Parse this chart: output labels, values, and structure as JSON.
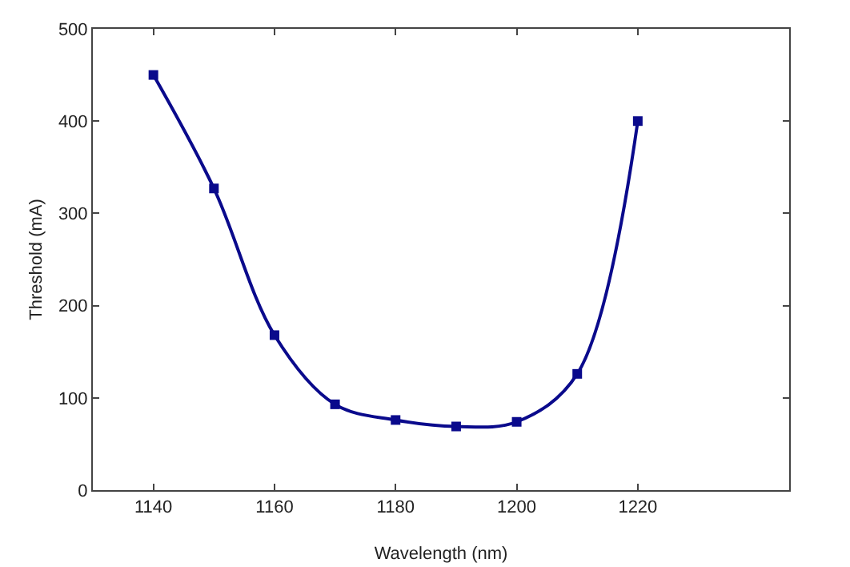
{
  "chart_data": {
    "type": "line",
    "xlabel": "Wavelength (nm)",
    "ylabel": "Threshold (mA)",
    "x": [
      1140,
      1150,
      1160,
      1170,
      1180,
      1190,
      1200,
      1210,
      1220
    ],
    "series": [
      {
        "color": "#0a0a8c",
        "values": [
          450,
          327,
          168,
          93,
          76,
          69,
          74,
          126,
          400
        ]
      }
    ],
    "xlim": [
      1130,
      1245
    ],
    "xticks": [
      1140,
      1160,
      1180,
      1200,
      1220
    ],
    "ylim": [
      0,
      500
    ],
    "yticks": [
      0,
      100,
      200,
      300,
      400,
      500
    ],
    "marker": "square",
    "line_style": "solid"
  }
}
